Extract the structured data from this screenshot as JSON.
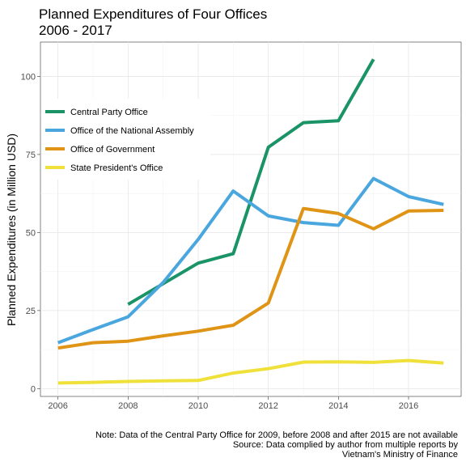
{
  "chart_data": {
    "type": "line",
    "title": [
      "Planned Expenditures of Four Offices",
      "2006 - 2017"
    ],
    "xlabel": "",
    "ylabel": "Planned Expenditures (in Million USD)",
    "xlim": [
      2005.5,
      2017.5
    ],
    "ylim": [
      -2.5,
      111
    ],
    "x_ticks": [
      2006,
      2008,
      2010,
      2012,
      2014,
      2016
    ],
    "y_ticks": [
      0,
      25,
      50,
      75,
      100
    ],
    "grid": true,
    "legend_position": "top-left",
    "series": [
      {
        "name": "Central Party Office",
        "color": "#1a9367",
        "points": [
          [
            2008,
            27.0
          ],
          [
            2010,
            40.2
          ],
          [
            2011,
            43.2
          ],
          [
            2012,
            77.3
          ],
          [
            2013,
            85.2
          ],
          [
            2014,
            85.8
          ],
          [
            2015,
            105.5
          ]
        ]
      },
      {
        "name": "Office of the National Assembly",
        "color": "#4aa6de",
        "points": [
          [
            2006,
            14.7
          ],
          [
            2007,
            18.9
          ],
          [
            2008,
            23.0
          ],
          [
            2009,
            34.0
          ],
          [
            2010,
            47.8
          ],
          [
            2011,
            63.3
          ],
          [
            2012,
            55.3
          ],
          [
            2013,
            53.2
          ],
          [
            2014,
            52.3
          ],
          [
            2015,
            67.3
          ],
          [
            2016,
            61.5
          ],
          [
            2017,
            59.0
          ]
        ]
      },
      {
        "name": "Office of Government",
        "color": "#e09416",
        "points": [
          [
            2006,
            13.0
          ],
          [
            2007,
            14.7
          ],
          [
            2008,
            15.2
          ],
          [
            2009,
            16.9
          ],
          [
            2010,
            18.4
          ],
          [
            2011,
            20.3
          ],
          [
            2012,
            27.4
          ],
          [
            2013,
            57.7
          ],
          [
            2014,
            56.1
          ],
          [
            2015,
            51.2
          ],
          [
            2016,
            56.9
          ],
          [
            2017,
            57.1
          ]
        ]
      },
      {
        "name": "State President's Office",
        "color": "#f0e03a",
        "points": [
          [
            2006,
            1.8
          ],
          [
            2007,
            2.0
          ],
          [
            2008,
            2.3
          ],
          [
            2009,
            2.5
          ],
          [
            2010,
            2.6
          ],
          [
            2011,
            5.0
          ],
          [
            2012,
            6.4
          ],
          [
            2013,
            8.5
          ],
          [
            2014,
            8.6
          ],
          [
            2015,
            8.4
          ],
          [
            2016,
            9.0
          ],
          [
            2017,
            8.2
          ]
        ]
      }
    ],
    "caption": [
      "Note: Data of the Central Party Office for 2009, before 2008 and after 2015 are not available",
      "Source: Data complied by author from multiple reports by",
      "Vietnam's Ministry of Finance"
    ]
  }
}
